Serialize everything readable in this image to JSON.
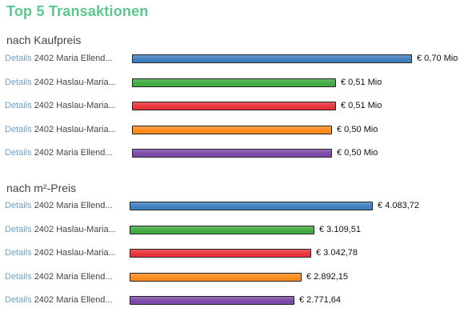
{
  "title": "Top 5 Transaktionen",
  "details_label": "Details",
  "sections": [
    {
      "title": "nach Kaufpreis",
      "rows": [
        {
          "name": "2402 Maria Ellend...",
          "value": 0.7,
          "value_label": "€ 0,70 Mio",
          "color": "#4080c0"
        },
        {
          "name": "2402 Haslau-Maria...",
          "value": 0.51,
          "value_label": "€ 0,51 Mio",
          "color": "#3faa3f"
        },
        {
          "name": "2402 Haslau-Maria...",
          "value": 0.51,
          "value_label": "€ 0,51 Mio",
          "color": "#e8333a"
        },
        {
          "name": "2402 Haslau-Maria...",
          "value": 0.5,
          "value_label": "€ 0,50 Mio",
          "color": "#ff8c1a"
        },
        {
          "name": "2402 Maria Ellend...",
          "value": 0.5,
          "value_label": "€ 0,50 Mio",
          "color": "#7b4aa8"
        }
      ]
    },
    {
      "title": "nach m²-Preis",
      "rows": [
        {
          "name": "2402 Maria Ellend...",
          "value": 4083.72,
          "value_label": "€ 4.083,72",
          "color": "#4080c0"
        },
        {
          "name": "2402 Haslau-Maria...",
          "value": 3109.51,
          "value_label": "€ 3.109,51",
          "color": "#3faa3f"
        },
        {
          "name": "2402 Haslau-Maria...",
          "value": 3042.78,
          "value_label": "€ 3.042,78",
          "color": "#e8333a"
        },
        {
          "name": "2402 Maria Ellend...",
          "value": 2892.15,
          "value_label": "€ 2.892,15",
          "color": "#ff8c1a"
        },
        {
          "name": "2402 Maria Ellend...",
          "value": 2771.64,
          "value_label": "€ 2.771,64",
          "color": "#7b4aa8"
        }
      ]
    }
  ],
  "chart_data": [
    {
      "type": "bar",
      "title": "nach Kaufpreis",
      "categories": [
        "2402 Maria Ellend...",
        "2402 Haslau-Maria...",
        "2402 Haslau-Maria...",
        "2402 Haslau-Maria...",
        "2402 Maria Ellend..."
      ],
      "values": [
        0.7,
        0.51,
        0.51,
        0.5,
        0.5
      ]
    },
    {
      "type": "bar",
      "title": "nach m²-Preis",
      "categories": [
        "2402 Maria Ellend...",
        "2402 Haslau-Maria...",
        "2402 Haslau-Maria...",
        "2402 Maria Ellend...",
        "2402 Maria Ellend..."
      ],
      "values": [
        4083.72,
        3109.51,
        3042.78,
        2892.15,
        2771.64
      ]
    }
  ]
}
